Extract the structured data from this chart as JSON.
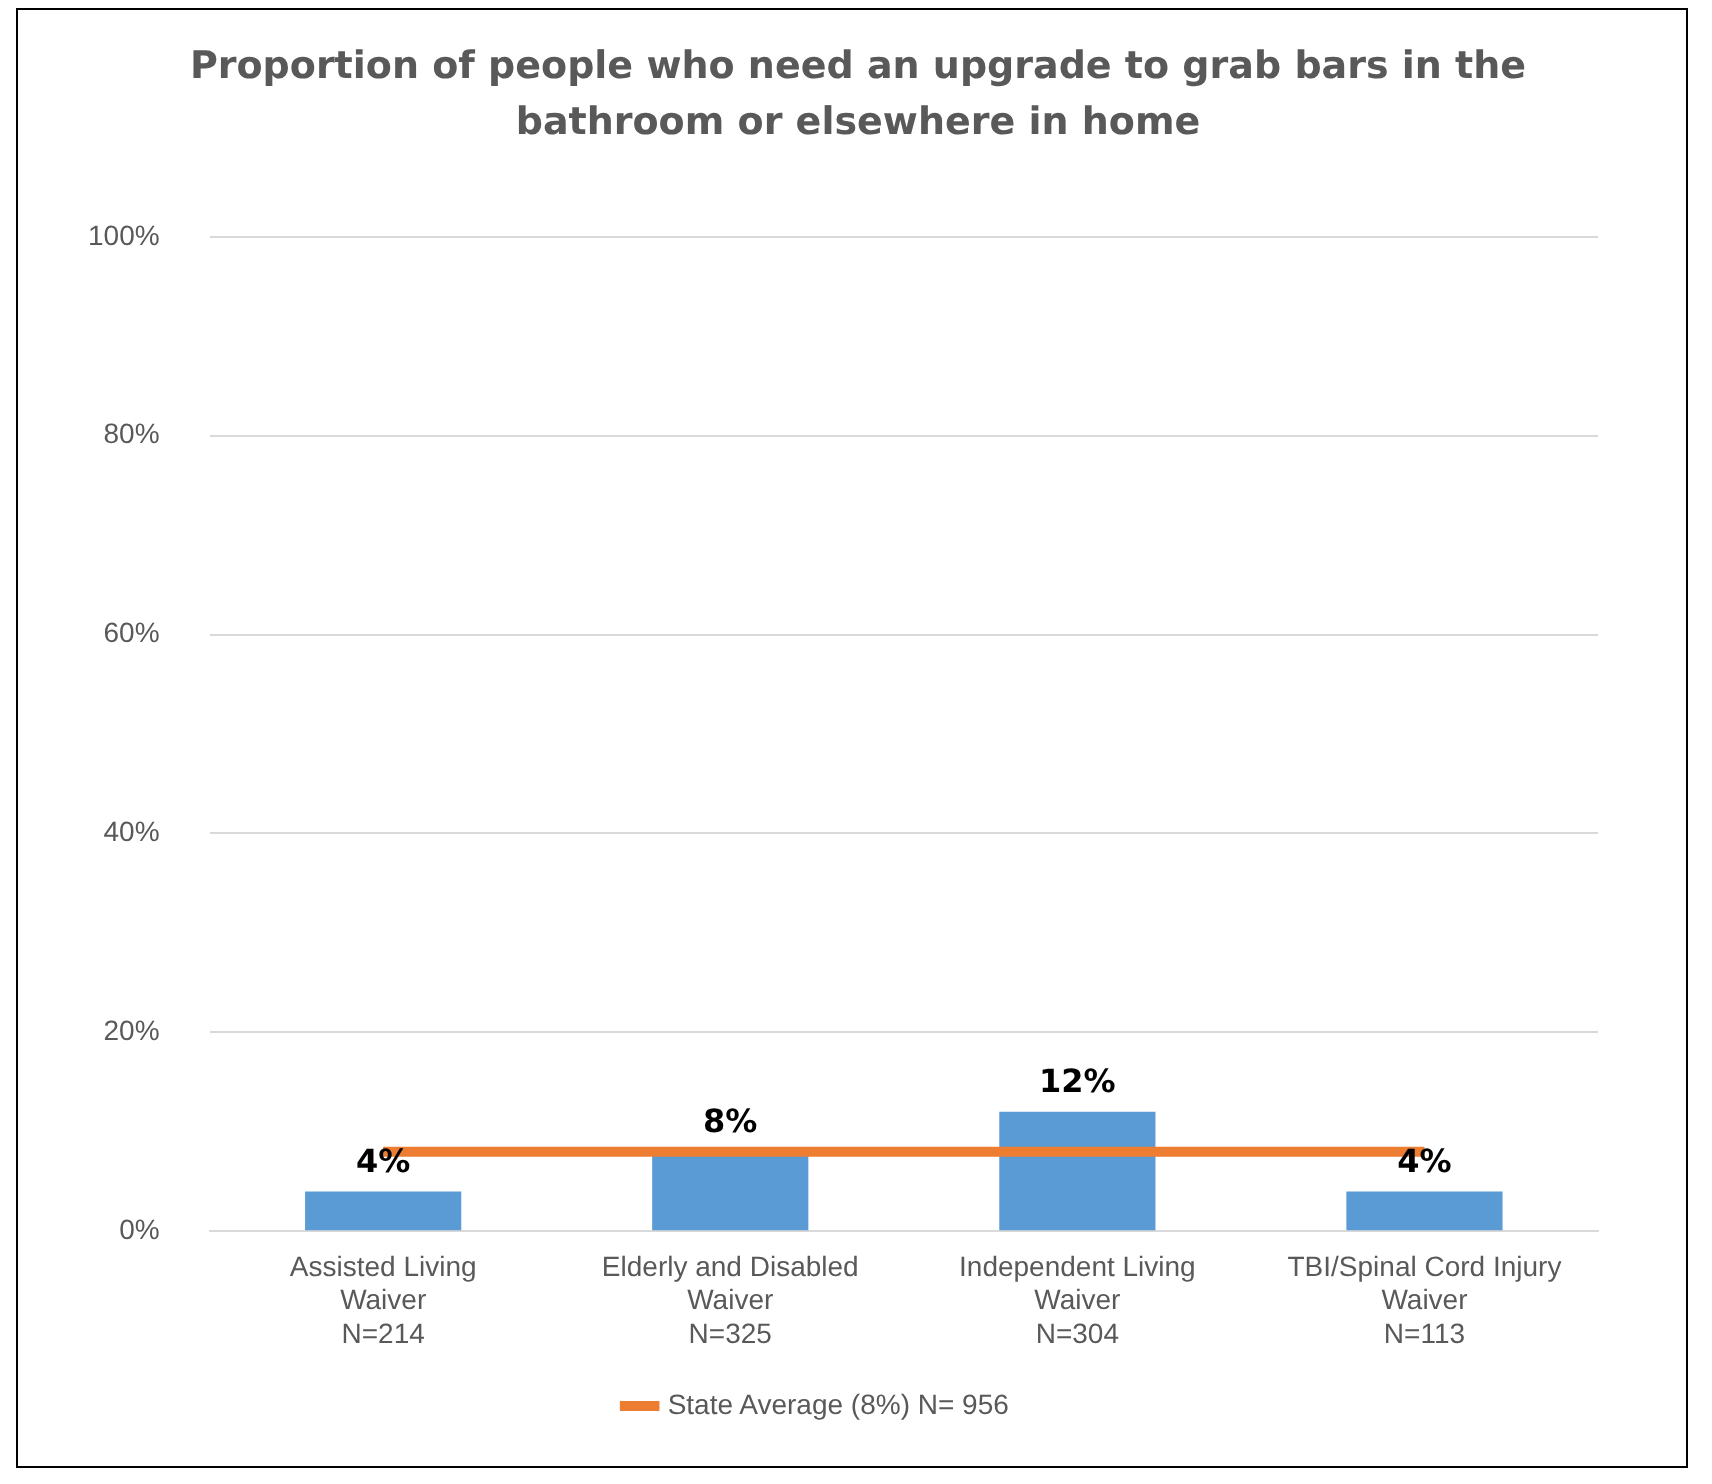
{
  "chart_data": {
    "type": "bar",
    "title": "Proportion of people who need an upgrade to grab bars in the bathroom or elsewhere in home",
    "categories": [
      "Assisted Living\nWaiver\nN=214",
      "Elderly and Disabled\nWaiver\nN=325",
      "Independent Living\nWaiver\nN=304",
      "TBI/Spinal Cord Injury\nWaiver\nN=113"
    ],
    "series": [
      {
        "color": "#5b9bd5",
        "values": [
          4,
          8,
          12,
          4
        ],
        "value_labels": [
          "4%",
          "8%",
          "12%",
          "4%"
        ]
      },
      {
        "type": "line",
        "name": "State Average (8%) N= 956",
        "color": "#ed7d31",
        "values": [
          8,
          8,
          8,
          8
        ]
      }
    ],
    "ylim": [
      0,
      100
    ],
    "yticks": [
      {
        "value": 0,
        "label": "0%"
      },
      {
        "value": 20,
        "label": "20%"
      },
      {
        "value": 40,
        "label": "40%"
      },
      {
        "value": 60,
        "label": "60%"
      },
      {
        "value": 80,
        "label": "80%"
      },
      {
        "value": 100,
        "label": "100%"
      }
    ],
    "grid": "y",
    "legend": "bottom",
    "marker": "none"
  }
}
